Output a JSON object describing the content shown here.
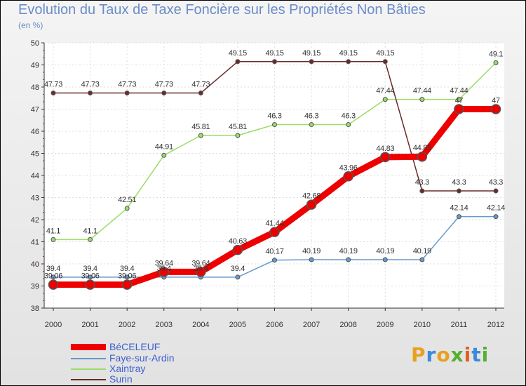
{
  "chart_data": {
    "type": "line",
    "title": "Evolution du Taux de Taxe Foncière sur les Propriétés Non Bâties",
    "subtitle": "(en %)",
    "ylim": [
      38,
      50
    ],
    "yticks": [
      "38",
      "39",
      "40",
      "41",
      "42",
      "43",
      "44",
      "45",
      "46",
      "47",
      "48",
      "49",
      "50"
    ],
    "categories": [
      "2000",
      "2001",
      "2002",
      "2003",
      "2004",
      "2005",
      "2006",
      "2007",
      "2008",
      "2009",
      "2010",
      "2011",
      "2012"
    ],
    "series": [
      {
        "name": "BéCELEUF",
        "color": "#ee0000",
        "values": [
          39.06,
          39.06,
          39.06,
          39.64,
          39.64,
          40.63,
          41.44,
          42.68,
          43.96,
          44.83,
          44.85,
          47,
          47
        ],
        "labels": [
          "39.06",
          "39.06",
          "39.06",
          "39.64",
          "39.64",
          "40.63",
          "41.44",
          "42.68",
          "43.96",
          "44.83",
          "44.85",
          "47",
          "47"
        ]
      },
      {
        "name": "Faye-sur-Ardin",
        "color": "#6699cc",
        "values": [
          39.4,
          39.4,
          39.4,
          39.4,
          39.4,
          39.4,
          40.17,
          40.19,
          40.19,
          40.19,
          40.19,
          42.14,
          42.14
        ],
        "labels": [
          "39.4",
          "39.4",
          "39.4",
          "39.4",
          "39.4",
          "39.4",
          "40.17",
          "40.19",
          "40.19",
          "40.19",
          "40.19",
          "42.14",
          "42.14"
        ]
      },
      {
        "name": "Xaintray",
        "color": "#99dd66",
        "values": [
          41.1,
          41.1,
          42.51,
          44.91,
          45.81,
          45.81,
          46.3,
          46.3,
          46.3,
          47.44,
          47.44,
          47.44,
          49.1
        ],
        "labels": [
          "41.1",
          "41.1",
          "42.51",
          "44.91",
          "45.81",
          "45.81",
          "46.3",
          "46.3",
          "46.3",
          "47.44",
          "47.44",
          "47.44",
          "49.1"
        ]
      },
      {
        "name": "Surin",
        "color": "#6b2a2a",
        "values": [
          47.73,
          47.73,
          47.73,
          47.73,
          47.73,
          49.15,
          49.15,
          49.15,
          49.15,
          49.15,
          43.3,
          43.3,
          43.3
        ],
        "labels": [
          "47.73",
          "47.73",
          "47.73",
          "47.73",
          "47.73",
          "49.15",
          "49.15",
          "49.15",
          "49.15",
          "49.15",
          "43.3",
          "43.3",
          "43.3"
        ]
      }
    ]
  },
  "logo": {
    "text": "Proxiti",
    "colors": [
      "#e8a020",
      "#3a8ad8",
      "#e8a020",
      "#55b030",
      "#e06020",
      "#3a8ad8",
      "#55b030"
    ]
  }
}
